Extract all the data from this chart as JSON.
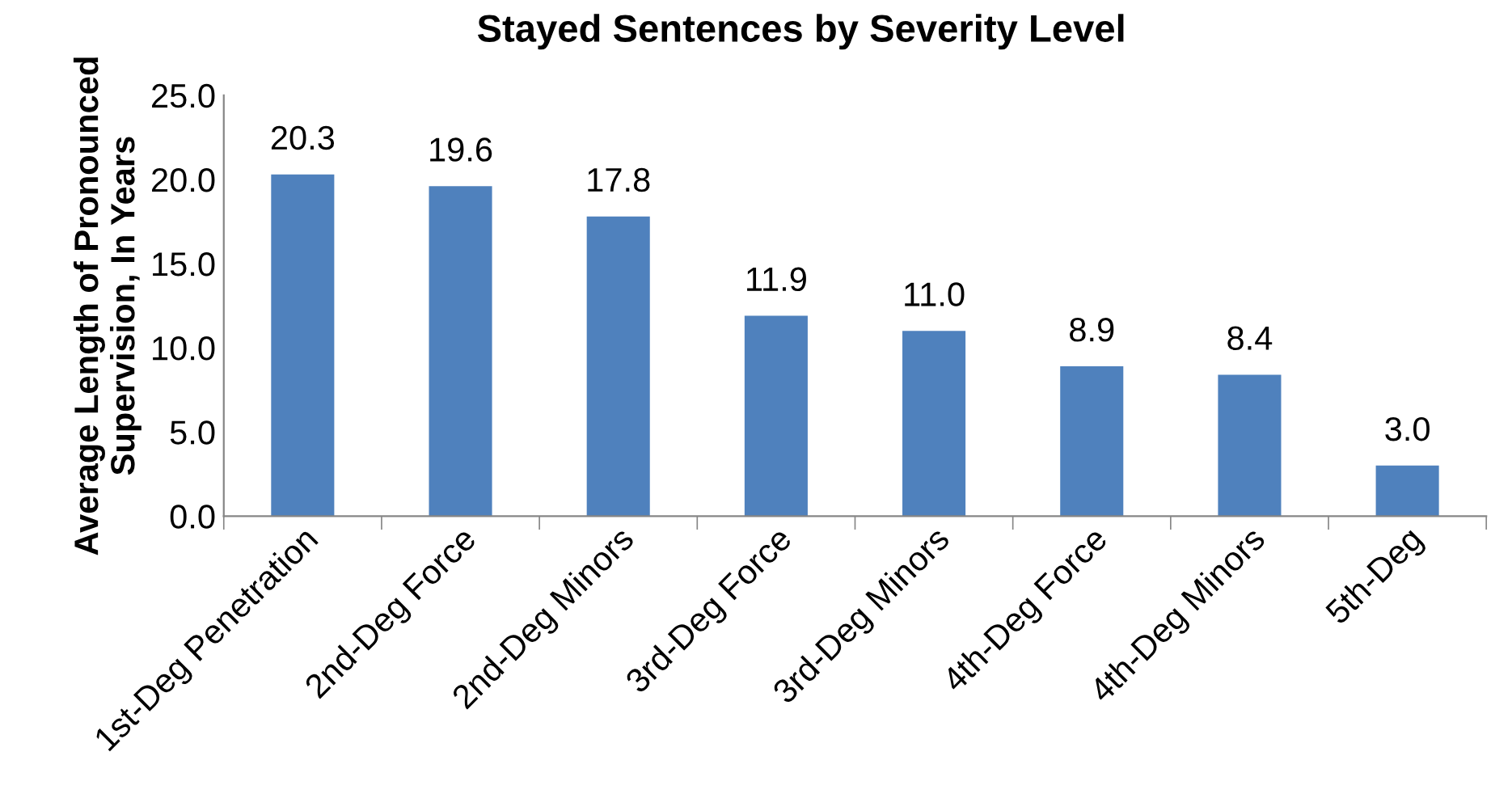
{
  "chart_data": {
    "type": "bar",
    "title": "Stayed Sentences by Severity Level",
    "ylabel": "Average Length of Pronounced\nSupervision, In Years",
    "categories": [
      "1st-Deg Penetration",
      "2nd-Deg Force",
      "2nd-Deg Minors",
      "3rd-Deg Force",
      "3rd-Deg Minors",
      "4th-Deg Force",
      "4th-Deg Minors",
      "5th-Deg"
    ],
    "values": [
      20.3,
      19.6,
      17.8,
      11.9,
      11.0,
      8.9,
      8.4,
      3.0
    ],
    "color": "#4f81bd",
    "value_labels": [
      "20.3",
      "19.6",
      "17.8",
      "11.9",
      "11.0",
      "8.9",
      "8.4",
      "3.0"
    ],
    "ylim": [
      0,
      25
    ],
    "yticks": [
      {
        "value": 0,
        "label": "0.0"
      },
      {
        "value": 5,
        "label": "5.0"
      },
      {
        "value": 10,
        "label": "10.0"
      },
      {
        "value": 15,
        "label": "15.0"
      },
      {
        "value": 20,
        "label": "20.0"
      },
      {
        "value": 25,
        "label": "25.0"
      }
    ],
    "grid": false
  }
}
